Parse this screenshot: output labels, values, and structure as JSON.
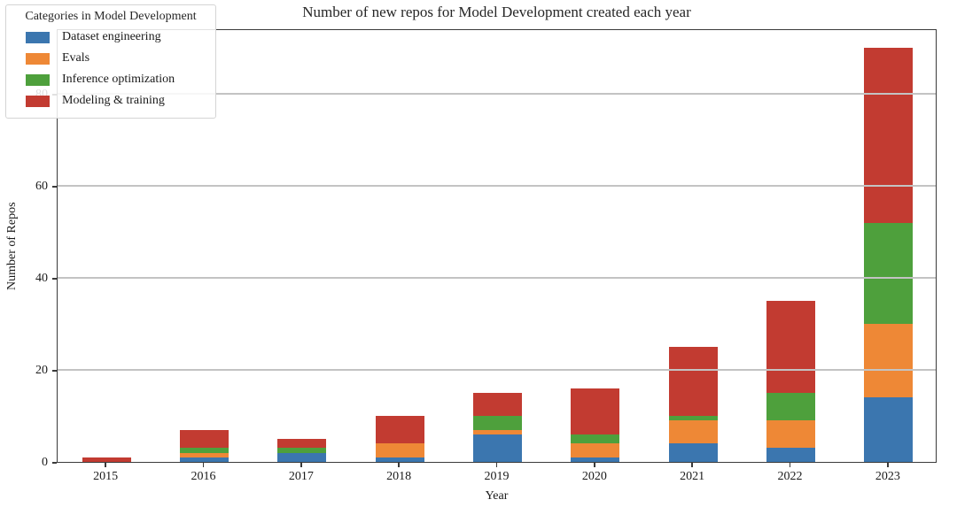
{
  "title": "Number of new repos for Model Development created each year",
  "chart_data": {
    "type": "bar",
    "stacked": true,
    "title": "Number of new repos for Model Development created each year",
    "xlabel": "Year",
    "ylabel": "Number of Repos",
    "categories": [
      "2015",
      "2016",
      "2017",
      "2018",
      "2019",
      "2020",
      "2021",
      "2022",
      "2023"
    ],
    "series": [
      {
        "name": "Dataset engineering",
        "color": "#3b76af",
        "values": [
          0,
          1,
          2,
          1,
          6,
          1,
          4,
          3,
          14
        ]
      },
      {
        "name": "Evals",
        "color": "#ee8836",
        "values": [
          0,
          1,
          0,
          3,
          1,
          3,
          5,
          6,
          16
        ]
      },
      {
        "name": "Inference optimization",
        "color": "#4ea03c",
        "values": [
          0,
          1,
          1,
          0,
          3,
          2,
          1,
          6,
          22
        ]
      },
      {
        "name": "Modeling & training",
        "color": "#c23b31",
        "values": [
          1,
          4,
          2,
          6,
          5,
          10,
          15,
          20,
          38
        ]
      }
    ],
    "totals": [
      1,
      7,
      5,
      10,
      15,
      16,
      25,
      35,
      90
    ],
    "yticks": [
      0,
      20,
      40,
      60,
      80
    ],
    "ylim": [
      0,
      94.2
    ],
    "grid": "horizontal",
    "legend_title": "Categories in Model Development",
    "legend_position": "upper left"
  }
}
